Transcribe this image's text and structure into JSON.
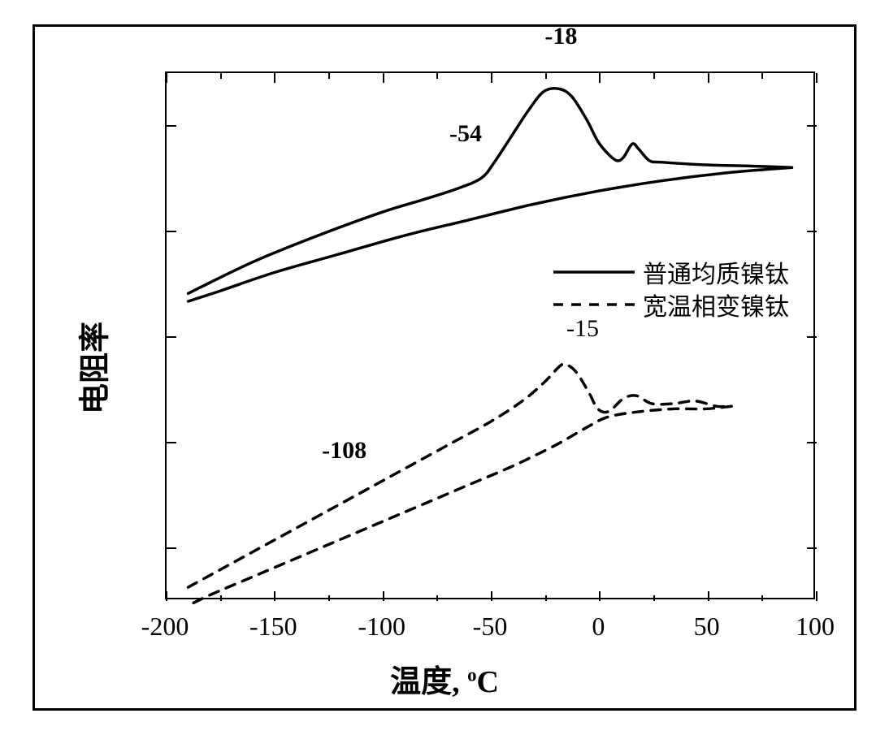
{
  "chart": {
    "type": "line",
    "ylabel": "电阻率",
    "xlabel_prefix": "温度, ",
    "xlabel_unit_super": "o",
    "xlabel_unit": "C",
    "background_color": "#ffffff",
    "border_color": "#000000",
    "xlim": [
      -200,
      100
    ],
    "xtick_step": 50,
    "xticks": [
      -200,
      -150,
      -100,
      -50,
      0,
      50,
      100
    ],
    "ylim": [
      0,
      1
    ],
    "series": [
      {
        "name": "普通均质镍钛",
        "color": "#000000",
        "linewidth": 3.5,
        "dash": "none",
        "upper_path": [
          [
            -190,
            0.58
          ],
          [
            -160,
            0.64
          ],
          [
            -130,
            0.69
          ],
          [
            -100,
            0.735
          ],
          [
            -80,
            0.76
          ],
          [
            -65,
            0.78
          ],
          [
            -54,
            0.8
          ],
          [
            -48,
            0.83
          ],
          [
            -40,
            0.88
          ],
          [
            -32,
            0.93
          ],
          [
            -25,
            0.965
          ],
          [
            -18,
            0.97
          ],
          [
            -12,
            0.955
          ],
          [
            -5,
            0.91
          ],
          [
            0,
            0.87
          ],
          [
            5,
            0.845
          ],
          [
            9,
            0.833
          ],
          [
            12,
            0.84
          ],
          [
            16,
            0.865
          ],
          [
            19,
            0.855
          ],
          [
            24,
            0.833
          ],
          [
            30,
            0.83
          ],
          [
            50,
            0.825
          ],
          [
            70,
            0.823
          ],
          [
            90,
            0.82
          ]
        ],
        "lower_path": [
          [
            90,
            0.82
          ],
          [
            60,
            0.81
          ],
          [
            30,
            0.795
          ],
          [
            0,
            0.775
          ],
          [
            -30,
            0.75
          ],
          [
            -60,
            0.72
          ],
          [
            -90,
            0.69
          ],
          [
            -120,
            0.655
          ],
          [
            -150,
            0.62
          ],
          [
            -175,
            0.585
          ],
          [
            -190,
            0.565
          ]
        ],
        "annotations": [
          {
            "text": "-18",
            "x": -18,
            "y": 1.07
          },
          {
            "text": "-54",
            "x": -62,
            "y": 0.885
          }
        ]
      },
      {
        "name": "宽温相变镍钛",
        "color": "#000000",
        "linewidth": 3.5,
        "dash": "12 10",
        "upper_path": [
          [
            -190,
            0.02
          ],
          [
            -170,
            0.065
          ],
          [
            -150,
            0.11
          ],
          [
            -130,
            0.155
          ],
          [
            -110,
            0.2
          ],
          [
            -90,
            0.245
          ],
          [
            -70,
            0.29
          ],
          [
            -50,
            0.335
          ],
          [
            -35,
            0.375
          ],
          [
            -25,
            0.41
          ],
          [
            -18,
            0.44
          ],
          [
            -15,
            0.445
          ],
          [
            -10,
            0.43
          ],
          [
            -4,
            0.39
          ],
          [
            0,
            0.36
          ],
          [
            5,
            0.355
          ],
          [
            12,
            0.38
          ],
          [
            18,
            0.385
          ],
          [
            25,
            0.37
          ],
          [
            35,
            0.37
          ],
          [
            45,
            0.375
          ],
          [
            55,
            0.365
          ],
          [
            62,
            0.365
          ]
        ],
        "lower_path": [
          [
            62,
            0.365
          ],
          [
            50,
            0.36
          ],
          [
            35,
            0.36
          ],
          [
            20,
            0.355
          ],
          [
            5,
            0.345
          ],
          [
            -5,
            0.325
          ],
          [
            -20,
            0.29
          ],
          [
            -40,
            0.25
          ],
          [
            -60,
            0.215
          ],
          [
            -80,
            0.18
          ],
          [
            -100,
            0.145
          ],
          [
            -120,
            0.11
          ],
          [
            -140,
            0.075
          ],
          [
            -160,
            0.04
          ],
          [
            -180,
            0.005
          ],
          [
            -190,
            -0.015
          ]
        ],
        "annotations": [
          {
            "text": "-15",
            "x": -8,
            "y": 0.515,
            "weight": "normal"
          },
          {
            "text": "-108",
            "x": -118,
            "y": 0.285
          }
        ]
      }
    ],
    "legend": {
      "entries": [
        {
          "label": "普通均质镍钛",
          "dash": "none"
        },
        {
          "label": "宽温相变镍钛",
          "dash": "12 10"
        }
      ]
    }
  }
}
